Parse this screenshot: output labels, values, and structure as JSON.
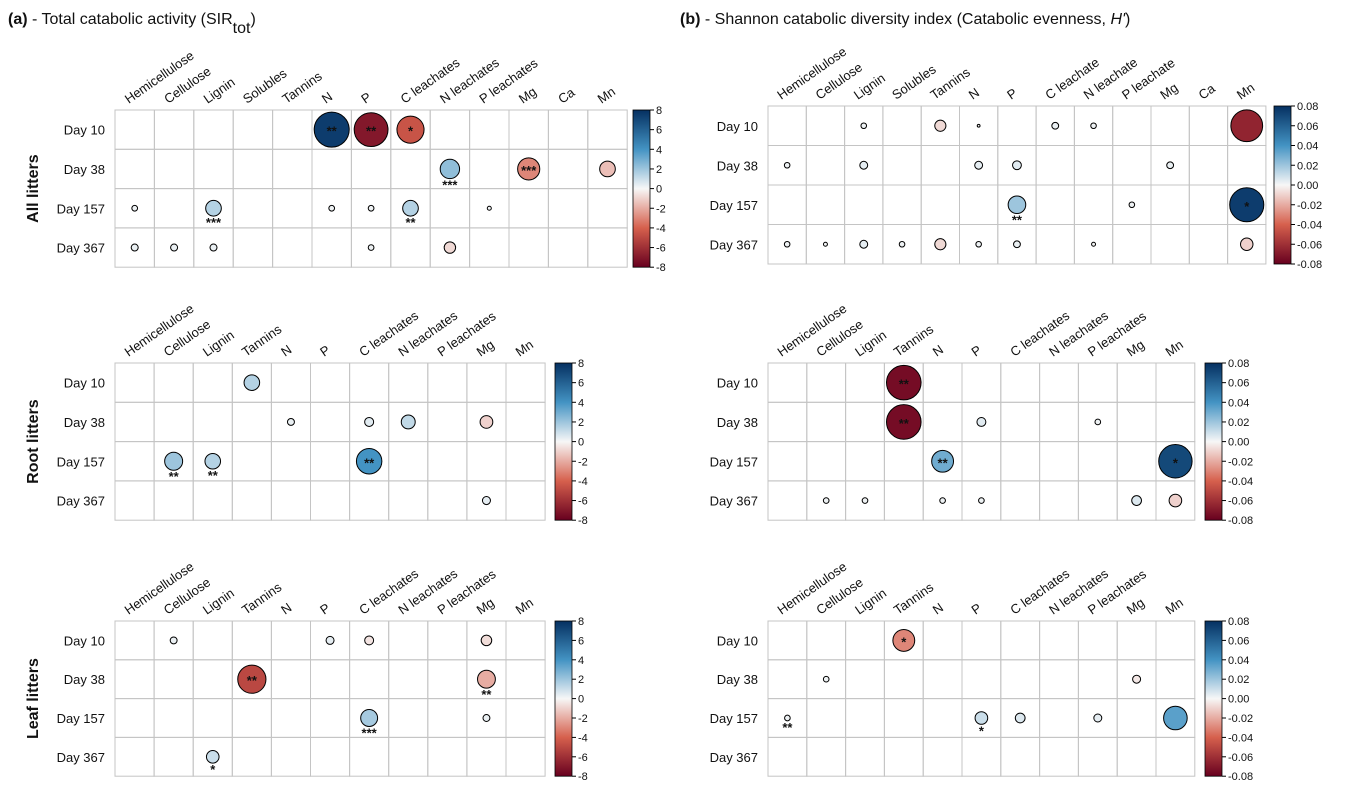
{
  "chart_data": [
    {
      "type": "bubble-matrix",
      "panel": "(a)",
      "title": " - Total catabolic activity (SIR",
      "title_sub": "tot",
      "title_end": ")",
      "group": "All litters",
      "columns": [
        "Hemicellulose",
        "Cellulose",
        "Lignin",
        "Solubles",
        "Tannins",
        "N",
        "P",
        "C leachates",
        "N leachates",
        "P leachates",
        "Mg",
        "Ca",
        "Mn"
      ],
      "rows": [
        "Day 10",
        "Day 38",
        "Day 157",
        "Day 367"
      ],
      "values": [
        [
          null,
          null,
          null,
          null,
          null,
          7.5,
          -7,
          -4.5,
          null,
          null,
          null,
          null,
          null
        ],
        [
          null,
          null,
          null,
          null,
          null,
          null,
          null,
          null,
          2.3,
          null,
          -3,
          null,
          -1.5
        ],
        [
          0.2,
          null,
          1.5,
          null,
          null,
          0.2,
          0.2,
          1.5,
          null,
          0.1,
          null,
          null,
          null
        ],
        [
          0.3,
          0.3,
          0.3,
          null,
          null,
          null,
          0.2,
          null,
          -0.8,
          null,
          null,
          null,
          null
        ]
      ],
      "stars": [
        [
          null,
          null,
          null,
          null,
          null,
          "**",
          "**",
          "*",
          null,
          null,
          null,
          null,
          null
        ],
        [
          null,
          null,
          null,
          null,
          null,
          null,
          null,
          null,
          "***",
          null,
          "***",
          null,
          null
        ],
        [
          null,
          null,
          "***",
          null,
          null,
          null,
          null,
          "**",
          null,
          null,
          null,
          null,
          null
        ],
        [
          null,
          null,
          null,
          null,
          null,
          null,
          null,
          null,
          null,
          null,
          null,
          null,
          null
        ]
      ],
      "clim": [
        -8,
        8
      ],
      "cticks": [
        8,
        6,
        4,
        2,
        0,
        -2,
        -4,
        -6,
        -8
      ]
    },
    {
      "type": "bubble-matrix",
      "panel": "(b)",
      "title": " - Shannon catabolic diversity index (Catabolic evenness, ",
      "title_italic": "H'",
      "title_end": ")",
      "columns": [
        "Hemicellulose",
        "Cellulose",
        "Lignin",
        "Solubles",
        "Tannins",
        "N",
        "P",
        "C leachate",
        "N leachate",
        "P leachate",
        "Mg",
        "Ca",
        "Mn"
      ],
      "rows": [
        "Day 10",
        "Day 38",
        "Day 157",
        "Day 367"
      ],
      "values": [
        [
          null,
          null,
          0.002,
          null,
          -0.008,
          0.0005,
          null,
          0.003,
          0.002,
          null,
          null,
          null,
          -0.065
        ],
        [
          0.002,
          null,
          0.004,
          null,
          null,
          0.004,
          0.005,
          null,
          null,
          null,
          0.003,
          null,
          null
        ],
        [
          null,
          null,
          null,
          null,
          null,
          null,
          0.02,
          null,
          null,
          0.002,
          null,
          null,
          0.075
        ],
        [
          0.002,
          0.001,
          0.004,
          0.002,
          -0.008,
          0.002,
          0.003,
          null,
          0.001,
          null,
          null,
          null,
          -0.01
        ]
      ],
      "stars": [
        [
          null,
          null,
          null,
          null,
          null,
          null,
          null,
          null,
          null,
          null,
          null,
          null,
          null
        ],
        [
          null,
          null,
          null,
          null,
          null,
          null,
          null,
          null,
          null,
          null,
          null,
          null,
          null
        ],
        [
          null,
          null,
          null,
          null,
          null,
          null,
          "**",
          null,
          null,
          null,
          null,
          null,
          "*"
        ],
        [
          null,
          null,
          null,
          null,
          null,
          null,
          null,
          null,
          null,
          null,
          null,
          null,
          null
        ]
      ],
      "clim": [
        -0.08,
        0.08
      ],
      "cticks": [
        0.08,
        0.06,
        0.04,
        0.02,
        {
          "value": 0,
          "label": "0.00"
        },
        -0.02,
        -0.04,
        -0.06,
        -0.08
      ]
    },
    {
      "type": "bubble-matrix",
      "group": "Root litters",
      "columns": [
        "Hemicellulose",
        "Cellulose",
        "Lignin",
        "Tannins",
        "N",
        "P",
        "C leachates",
        "N leachates",
        "P leachates",
        "Mg",
        "Mn"
      ],
      "rows": [
        "Day 10",
        "Day 38",
        "Day 157",
        "Day 367"
      ],
      "values": [
        [
          null,
          null,
          null,
          1.5,
          null,
          null,
          null,
          null,
          null,
          null,
          null
        ],
        [
          null,
          null,
          null,
          null,
          0.3,
          null,
          0.5,
          1.2,
          null,
          -1,
          null
        ],
        [
          null,
          2,
          1.5,
          null,
          null,
          null,
          4,
          null,
          null,
          null,
          null
        ],
        [
          null,
          null,
          null,
          null,
          null,
          null,
          null,
          null,
          null,
          0.4,
          null
        ]
      ],
      "stars": [
        [
          null,
          null,
          null,
          null,
          null,
          null,
          null,
          null,
          null,
          null,
          null
        ],
        [
          null,
          null,
          null,
          null,
          null,
          null,
          null,
          null,
          null,
          null,
          null
        ],
        [
          null,
          "**",
          "**",
          null,
          null,
          null,
          "**",
          null,
          null,
          null,
          null
        ],
        [
          null,
          null,
          null,
          null,
          null,
          null,
          null,
          null,
          null,
          null,
          null
        ]
      ],
      "clim": [
        -8,
        8
      ],
      "cticks": [
        8,
        6,
        4,
        2,
        0,
        -2,
        -4,
        -6,
        -8
      ]
    },
    {
      "type": "bubble-matrix",
      "columns": [
        "Hemicellulose",
        "Cellulose",
        "Lignin",
        "Tannins",
        "N",
        "P",
        "C leachates",
        "N leachates",
        "P leachates",
        "Mg",
        "Mn"
      ],
      "rows": [
        "Day 10",
        "Day 38",
        "Day 157",
        "Day 367"
      ],
      "values": [
        [
          null,
          null,
          null,
          -0.075,
          null,
          null,
          null,
          null,
          null,
          null,
          null
        ],
        [
          null,
          null,
          null,
          -0.075,
          null,
          0.005,
          null,
          null,
          0.002,
          null,
          null
        ],
        [
          null,
          null,
          null,
          null,
          0.03,
          null,
          null,
          null,
          null,
          null,
          0.07
        ],
        [
          null,
          0.002,
          0.002,
          null,
          0.002,
          0.002,
          null,
          null,
          null,
          0.006,
          -0.01
        ]
      ],
      "stars": [
        [
          null,
          null,
          null,
          "**",
          null,
          null,
          null,
          null,
          null,
          null,
          null
        ],
        [
          null,
          null,
          null,
          "**",
          null,
          null,
          null,
          null,
          null,
          null,
          null
        ],
        [
          null,
          null,
          null,
          null,
          "**",
          null,
          null,
          null,
          null,
          null,
          "*"
        ],
        [
          null,
          null,
          null,
          null,
          null,
          null,
          null,
          null,
          null,
          null,
          null
        ]
      ],
      "clim": [
        -0.08,
        0.08
      ],
      "cticks": [
        0.08,
        0.06,
        0.04,
        0.02,
        {
          "value": 0,
          "label": "0.00"
        },
        -0.02,
        -0.04,
        -0.06,
        -0.08
      ]
    },
    {
      "type": "bubble-matrix",
      "group": "Leaf litters",
      "columns": [
        "Hemicellulose",
        "Cellulose",
        "Lignin",
        "Tannins",
        "N",
        "P",
        "C leachates",
        "N leachates",
        "P leachates",
        "Mg",
        "Mn"
      ],
      "rows": [
        "Day 10",
        "Day 38",
        "Day 157",
        "Day 367"
      ],
      "values": [
        [
          null,
          0.3,
          null,
          null,
          null,
          0.4,
          -0.5,
          null,
          null,
          -0.7,
          null
        ],
        [
          null,
          null,
          null,
          -5,
          null,
          null,
          null,
          null,
          null,
          -2,
          null
        ],
        [
          null,
          null,
          null,
          null,
          null,
          null,
          1.8,
          null,
          null,
          0.3,
          null
        ],
        [
          null,
          null,
          1,
          null,
          null,
          null,
          null,
          null,
          null,
          null,
          null
        ]
      ],
      "stars": [
        [
          null,
          null,
          null,
          null,
          null,
          null,
          null,
          null,
          null,
          null,
          null
        ],
        [
          null,
          null,
          null,
          "**",
          null,
          null,
          null,
          null,
          null,
          "**",
          null
        ],
        [
          null,
          null,
          null,
          null,
          null,
          null,
          "***",
          null,
          null,
          null,
          null
        ],
        [
          null,
          null,
          "*",
          null,
          null,
          null,
          null,
          null,
          null,
          null,
          null
        ]
      ],
      "clim": [
        -8,
        8
      ],
      "cticks": [
        8,
        6,
        4,
        2,
        0,
        -2,
        -4,
        -6,
        -8
      ]
    },
    {
      "type": "bubble-matrix",
      "columns": [
        "Hemicellulose",
        "Cellulose",
        "Lignin",
        "Tannins",
        "N",
        "P",
        "C leachates",
        "N leachates",
        "P leachates",
        "Mg",
        "Mn"
      ],
      "rows": [
        "Day 10",
        "Day 38",
        "Day 157",
        "Day 367"
      ],
      "values": [
        [
          null,
          null,
          null,
          -0.03,
          null,
          null,
          null,
          null,
          null,
          null,
          null
        ],
        [
          null,
          0.002,
          null,
          null,
          null,
          null,
          null,
          null,
          null,
          -0.004,
          null
        ],
        [
          0.002,
          null,
          null,
          null,
          null,
          0.01,
          0.006,
          null,
          0.004,
          null,
          0.035
        ],
        [
          null,
          null,
          null,
          null,
          null,
          null,
          null,
          null,
          null,
          null,
          null
        ]
      ],
      "stars": [
        [
          null,
          null,
          null,
          "*",
          null,
          null,
          null,
          null,
          null,
          null,
          null
        ],
        [
          null,
          null,
          null,
          null,
          null,
          null,
          null,
          null,
          null,
          null,
          null
        ],
        [
          "**",
          null,
          null,
          null,
          null,
          "*",
          null,
          null,
          null,
          null,
          null
        ],
        [
          null,
          null,
          null,
          null,
          null,
          null,
          null,
          null,
          null,
          null,
          null
        ]
      ],
      "clim": [
        -0.08,
        0.08
      ],
      "cticks": [
        0.08,
        0.06,
        0.04,
        0.02,
        {
          "value": 0,
          "label": "0.00"
        },
        -0.02,
        -0.04,
        -0.06,
        -0.08
      ]
    }
  ]
}
